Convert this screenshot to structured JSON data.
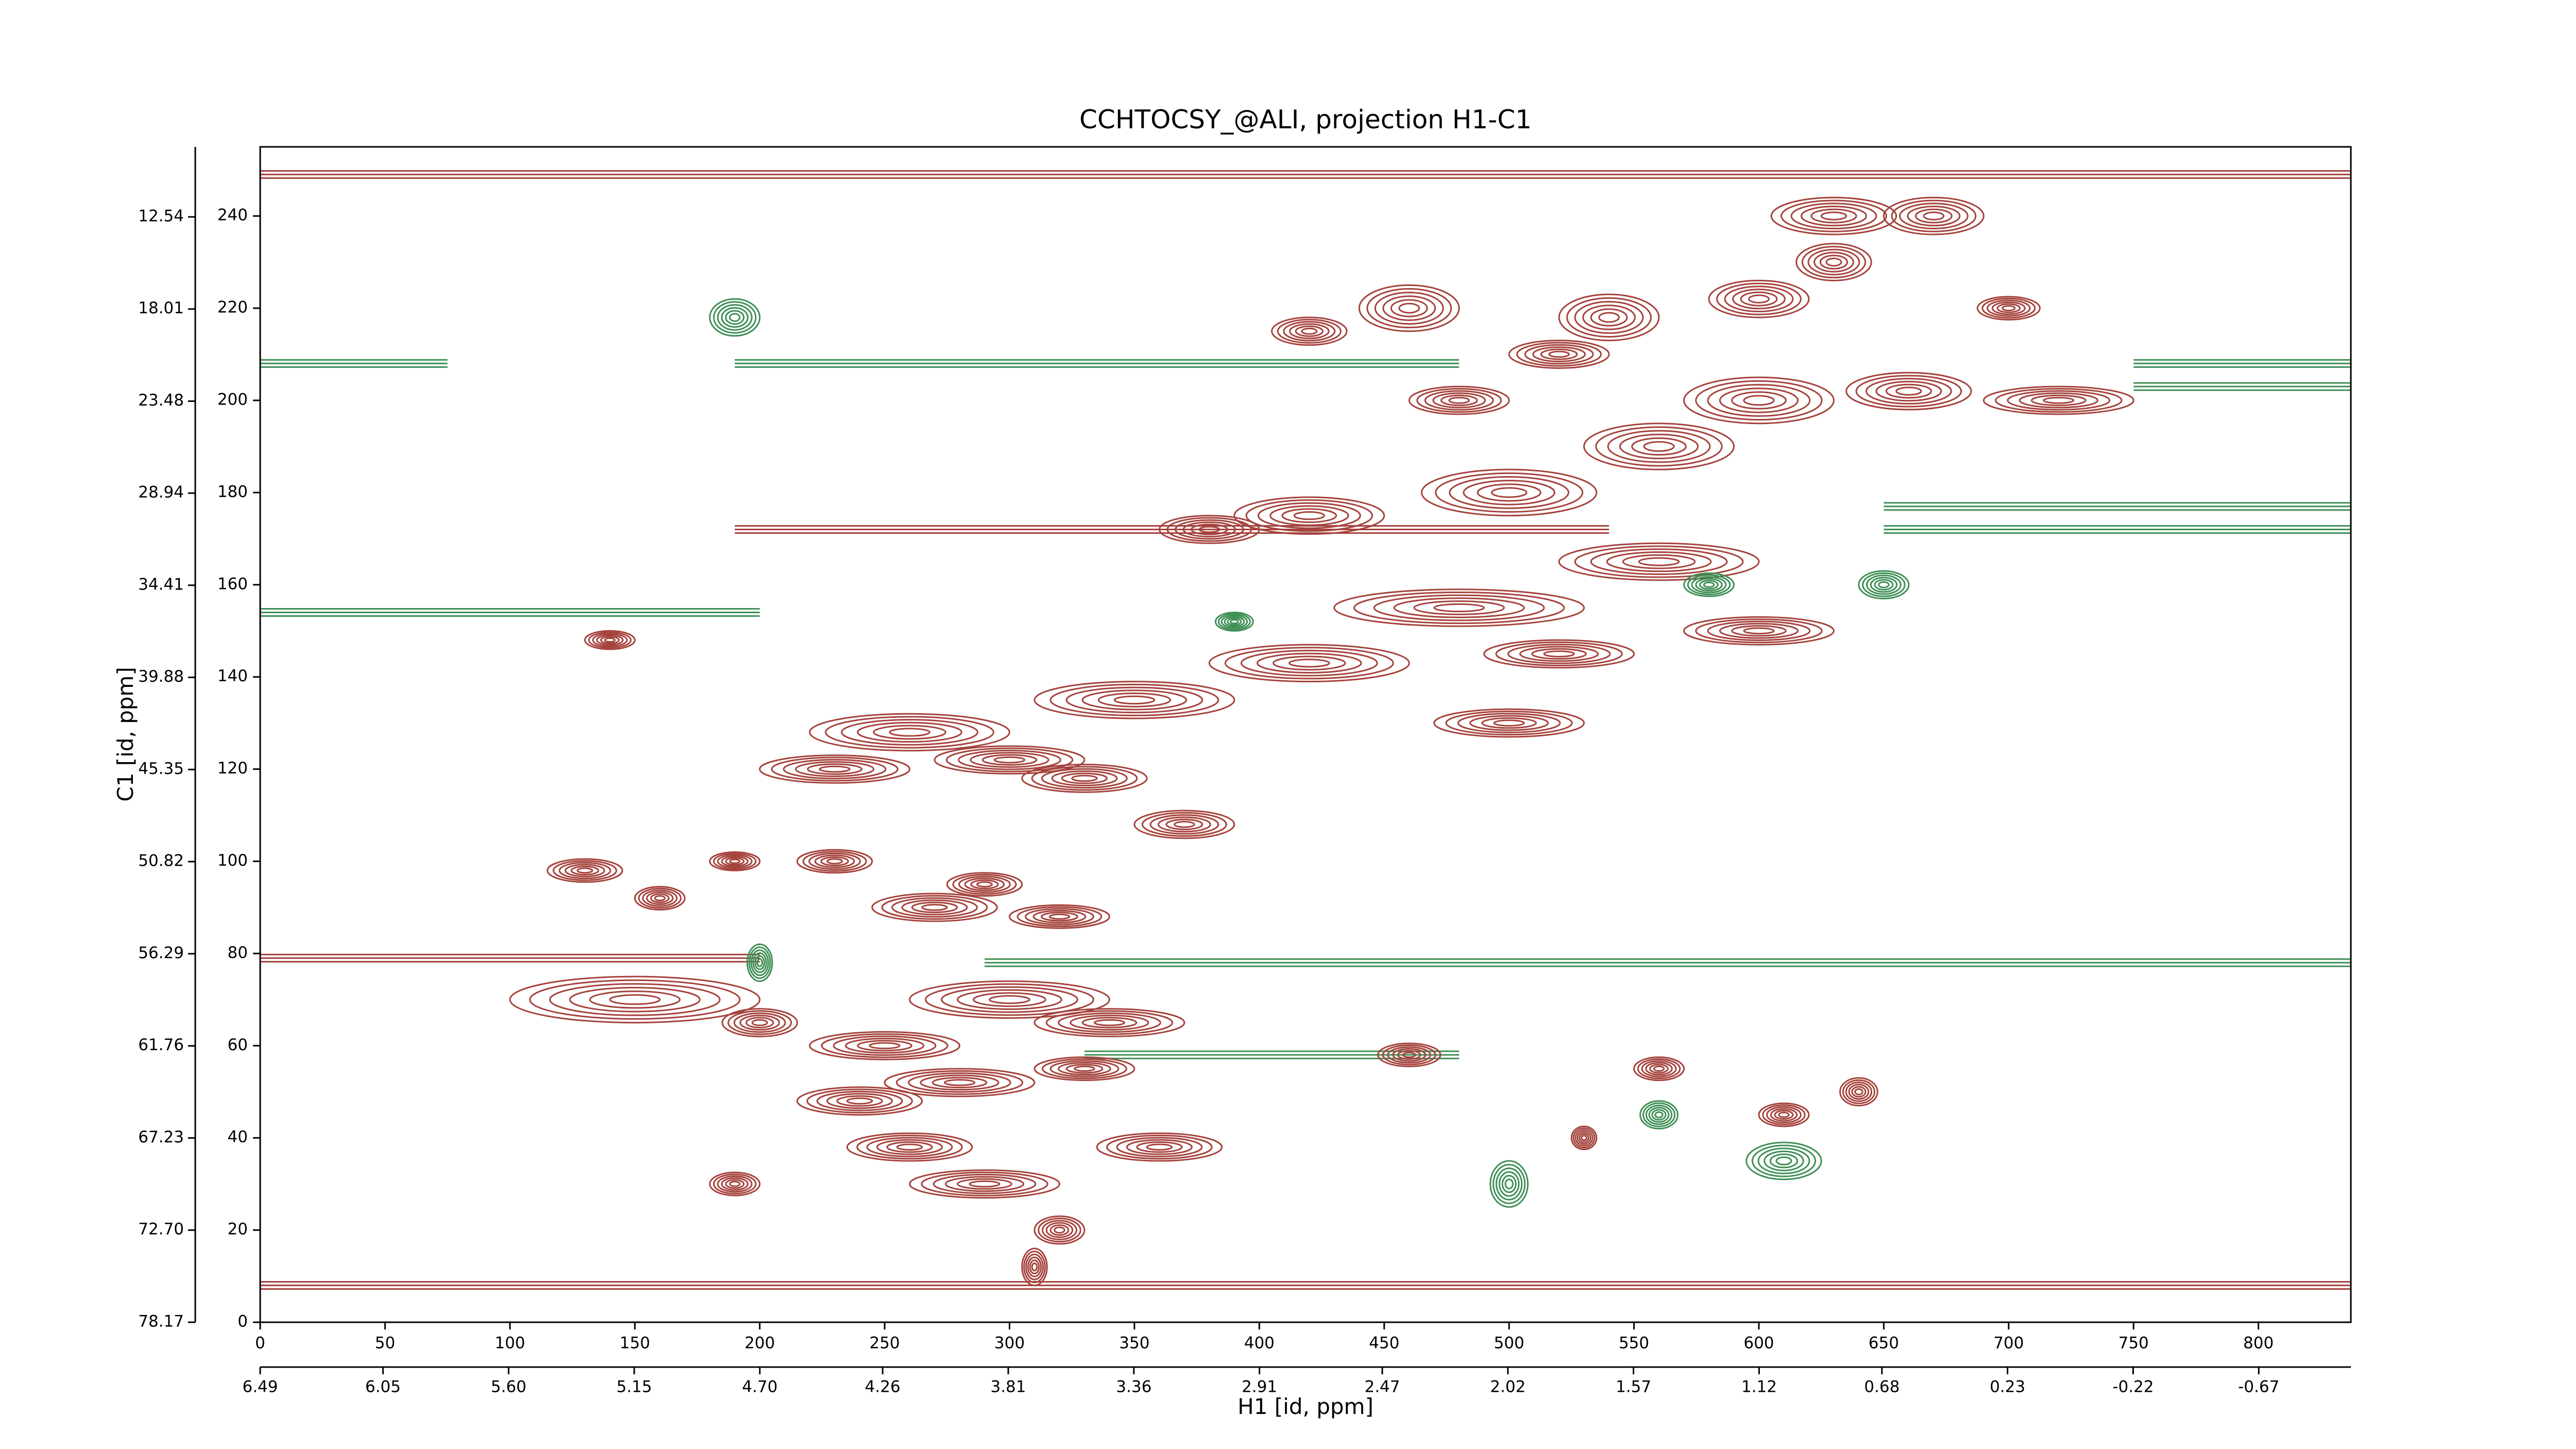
{
  "chart_data": {
    "type": "contour",
    "title": "CCHTOCSY_@ALI, projection H1-C1",
    "x_label": "H1 [id, ppm]",
    "y_label": "C1 [id, ppm]",
    "xlim": [
      0,
      837
    ],
    "xticks": [
      0,
      50,
      100,
      150,
      200,
      250,
      300,
      350,
      400,
      450,
      500,
      550,
      600,
      650,
      700,
      750,
      800
    ],
    "ylim": [
      0,
      255
    ],
    "yticks": [
      0,
      20,
      40,
      60,
      80,
      100,
      120,
      140,
      160,
      180,
      200,
      220,
      240
    ],
    "x2lim": [
      6.49,
      -1.0
    ],
    "x2ticks": [
      6.49,
      6.05,
      {
        "value": 5.6,
        "label": "5.60"
      },
      5.15,
      {
        "value": 4.7,
        "label": "4.70"
      },
      4.26,
      3.81,
      3.36,
      2.91,
      2.47,
      2.02,
      1.57,
      1.12,
      0.68,
      0.23,
      -0.22,
      -0.67
    ],
    "y2lim": [
      78.17,
      8.38
    ],
    "y2ticks": [
      12.54,
      18.01,
      23.48,
      28.94,
      34.41,
      39.88,
      45.35,
      50.82,
      56.29,
      61.76,
      67.23,
      {
        "value": 72.7,
        "label": "72.70"
      },
      78.17
    ],
    "colors": {
      "positive": "#a5423c",
      "negative": "#3f8f55"
    },
    "ridges": [
      {
        "y": 79,
        "x": [
          0,
          200
        ],
        "sign": "positive"
      },
      {
        "y": 78,
        "x": [
          290,
          837
        ],
        "sign": "negative"
      },
      {
        "y": 249,
        "x": [
          0,
          837
        ],
        "sign": "positive"
      },
      {
        "y": 208,
        "x": [
          0,
          75
        ],
        "sign": "negative"
      },
      {
        "y": 208,
        "x": [
          190,
          480
        ],
        "sign": "negative"
      },
      {
        "y": 208,
        "x": [
          750,
          837
        ],
        "sign": "negative"
      },
      {
        "y": 203,
        "x": [
          750,
          837
        ],
        "sign": "negative"
      },
      {
        "y": 172,
        "x": [
          190,
          540
        ],
        "sign": "positive"
      },
      {
        "y": 177,
        "x": [
          650,
          837
        ],
        "sign": "negative"
      },
      {
        "y": 172,
        "x": [
          650,
          837
        ],
        "sign": "negative"
      },
      {
        "y": 154,
        "x": [
          0,
          200
        ],
        "sign": "negative"
      },
      {
        "y": 8,
        "x": [
          0,
          837
        ],
        "sign": "positive"
      },
      {
        "y": 58,
        "x": [
          330,
          480
        ],
        "sign": "negative"
      }
    ],
    "peaks": [
      {
        "x": 460,
        "y": 220,
        "width": 40,
        "height": 10,
        "sign": "positive"
      },
      {
        "x": 540,
        "y": 218,
        "width": 40,
        "height": 10,
        "sign": "positive"
      },
      {
        "x": 600,
        "y": 222,
        "width": 40,
        "height": 8,
        "sign": "positive"
      },
      {
        "x": 630,
        "y": 230,
        "width": 30,
        "height": 8,
        "sign": "positive"
      },
      {
        "x": 630,
        "y": 240,
        "width": 50,
        "height": 8,
        "sign": "positive"
      },
      {
        "x": 670,
        "y": 240,
        "width": 40,
        "height": 8,
        "sign": "positive"
      },
      {
        "x": 700,
        "y": 220,
        "width": 25,
        "height": 5,
        "sign": "positive"
      },
      {
        "x": 720,
        "y": 200,
        "width": 60,
        "height": 6,
        "sign": "positive"
      },
      {
        "x": 660,
        "y": 202,
        "width": 50,
        "height": 8,
        "sign": "positive"
      },
      {
        "x": 600,
        "y": 200,
        "width": 60,
        "height": 10,
        "sign": "positive"
      },
      {
        "x": 560,
        "y": 190,
        "width": 60,
        "height": 10,
        "sign": "positive"
      },
      {
        "x": 500,
        "y": 180,
        "width": 70,
        "height": 10,
        "sign": "positive"
      },
      {
        "x": 420,
        "y": 175,
        "width": 60,
        "height": 8,
        "sign": "positive"
      },
      {
        "x": 380,
        "y": 172,
        "width": 40,
        "height": 6,
        "sign": "positive"
      },
      {
        "x": 560,
        "y": 165,
        "width": 80,
        "height": 8,
        "sign": "positive"
      },
      {
        "x": 480,
        "y": 155,
        "width": 100,
        "height": 8,
        "sign": "positive"
      },
      {
        "x": 600,
        "y": 150,
        "width": 60,
        "height": 6,
        "sign": "positive"
      },
      {
        "x": 420,
        "y": 143,
        "width": 80,
        "height": 8,
        "sign": "positive"
      },
      {
        "x": 520,
        "y": 145,
        "width": 60,
        "height": 6,
        "sign": "positive"
      },
      {
        "x": 350,
        "y": 135,
        "width": 80,
        "height": 8,
        "sign": "positive"
      },
      {
        "x": 500,
        "y": 130,
        "width": 60,
        "height": 6,
        "sign": "positive"
      },
      {
        "x": 260,
        "y": 128,
        "width": 80,
        "height": 8,
        "sign": "positive"
      },
      {
        "x": 230,
        "y": 120,
        "width": 60,
        "height": 6,
        "sign": "positive"
      },
      {
        "x": 300,
        "y": 122,
        "width": 60,
        "height": 6,
        "sign": "positive"
      },
      {
        "x": 330,
        "y": 118,
        "width": 50,
        "height": 6,
        "sign": "positive"
      },
      {
        "x": 370,
        "y": 108,
        "width": 40,
        "height": 6,
        "sign": "positive"
      },
      {
        "x": 290,
        "y": 95,
        "width": 30,
        "height": 5,
        "sign": "positive"
      },
      {
        "x": 230,
        "y": 100,
        "width": 30,
        "height": 5,
        "sign": "positive"
      },
      {
        "x": 130,
        "y": 98,
        "width": 30,
        "height": 5,
        "sign": "positive"
      },
      {
        "x": 160,
        "y": 92,
        "width": 20,
        "height": 5,
        "sign": "positive"
      },
      {
        "x": 270,
        "y": 90,
        "width": 50,
        "height": 6,
        "sign": "positive"
      },
      {
        "x": 320,
        "y": 88,
        "width": 40,
        "height": 5,
        "sign": "positive"
      },
      {
        "x": 340,
        "y": 65,
        "width": 60,
        "height": 6,
        "sign": "positive"
      },
      {
        "x": 330,
        "y": 55,
        "width": 40,
        "height": 5,
        "sign": "positive"
      },
      {
        "x": 280,
        "y": 52,
        "width": 60,
        "height": 6,
        "sign": "positive"
      },
      {
        "x": 240,
        "y": 48,
        "width": 50,
        "height": 6,
        "sign": "positive"
      },
      {
        "x": 260,
        "y": 38,
        "width": 50,
        "height": 6,
        "sign": "positive"
      },
      {
        "x": 360,
        "y": 38,
        "width": 50,
        "height": 6,
        "sign": "positive"
      },
      {
        "x": 290,
        "y": 30,
        "width": 60,
        "height": 6,
        "sign": "positive"
      },
      {
        "x": 320,
        "y": 20,
        "width": 20,
        "height": 6,
        "sign": "positive"
      },
      {
        "x": 310,
        "y": 12,
        "width": 10,
        "height": 8,
        "sign": "positive"
      },
      {
        "x": 300,
        "y": 70,
        "width": 80,
        "height": 8,
        "sign": "positive"
      },
      {
        "x": 250,
        "y": 60,
        "width": 60,
        "height": 6,
        "sign": "positive"
      },
      {
        "x": 200,
        "y": 65,
        "width": 30,
        "height": 6,
        "sign": "positive"
      },
      {
        "x": 150,
        "y": 70,
        "width": 100,
        "height": 10,
        "sign": "positive"
      },
      {
        "x": 190,
        "y": 30,
        "width": 20,
        "height": 5,
        "sign": "positive"
      },
      {
        "x": 480,
        "y": 200,
        "width": 40,
        "height": 6,
        "sign": "positive"
      },
      {
        "x": 520,
        "y": 210,
        "width": 40,
        "height": 6,
        "sign": "positive"
      },
      {
        "x": 420,
        "y": 215,
        "width": 30,
        "height": 6,
        "sign": "positive"
      },
      {
        "x": 140,
        "y": 148,
        "width": 20,
        "height": 4,
        "sign": "positive"
      },
      {
        "x": 190,
        "y": 100,
        "width": 20,
        "height": 4,
        "sign": "positive"
      },
      {
        "x": 530,
        "y": 40,
        "width": 10,
        "height": 5,
        "sign": "positive"
      },
      {
        "x": 560,
        "y": 55,
        "width": 20,
        "height": 5,
        "sign": "positive"
      },
      {
        "x": 610,
        "y": 45,
        "width": 20,
        "height": 5,
        "sign": "positive"
      },
      {
        "x": 640,
        "y": 50,
        "width": 15,
        "height": 6,
        "sign": "positive"
      },
      {
        "x": 460,
        "y": 58,
        "width": 25,
        "height": 5,
        "sign": "positive"
      },
      {
        "x": 190,
        "y": 218,
        "width": 20,
        "height": 8,
        "sign": "negative"
      },
      {
        "x": 560,
        "y": 45,
        "width": 15,
        "height": 6,
        "sign": "negative"
      },
      {
        "x": 580,
        "y": 160,
        "width": 20,
        "height": 5,
        "sign": "negative"
      },
      {
        "x": 650,
        "y": 160,
        "width": 20,
        "height": 6,
        "sign": "negative"
      },
      {
        "x": 200,
        "y": 78,
        "width": 10,
        "height": 8,
        "sign": "negative"
      },
      {
        "x": 500,
        "y": 30,
        "width": 15,
        "height": 10,
        "sign": "negative"
      },
      {
        "x": 610,
        "y": 35,
        "width": 30,
        "height": 8,
        "sign": "negative"
      },
      {
        "x": 390,
        "y": 152,
        "width": 15,
        "height": 4,
        "sign": "negative"
      }
    ]
  }
}
